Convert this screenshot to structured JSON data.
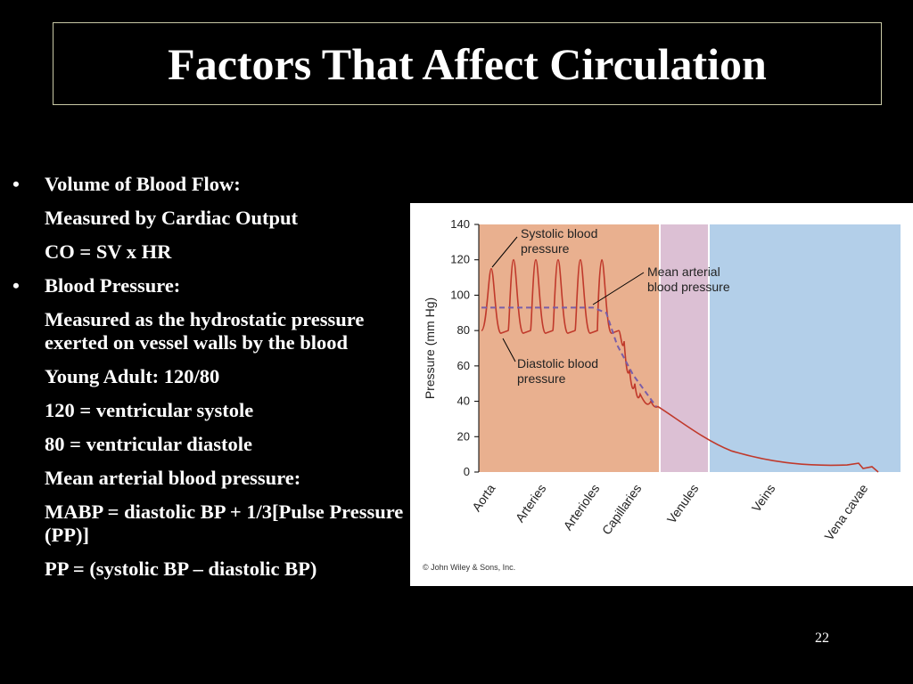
{
  "slide": {
    "title": "Factors That Affect Circulation",
    "number": "22"
  },
  "content": {
    "lines": [
      {
        "text": "Volume of Blood Flow:",
        "bullet": true
      },
      {
        "text": "Measured by Cardiac Output",
        "bullet": false
      },
      {
        "text": "CO = SV x HR",
        "bullet": false
      },
      {
        "text": "Blood Pressure:",
        "bullet": true
      },
      {
        "text": "Measured as the hydrostatic pressure exerted on vessel walls by the blood",
        "bullet": false
      },
      {
        "text": "Young Adult:  120/80",
        "bullet": false
      },
      {
        "text": "120 = ventricular systole",
        "bullet": false
      },
      {
        "text": "80   = ventricular diastole",
        "bullet": false
      },
      {
        "text": "Mean arterial blood pressure:",
        "bullet": false
      },
      {
        "text": "MABP = diastolic BP + 1/3[Pulse Pressure (PP)]",
        "bullet": false
      },
      {
        "text": "PP = (systolic BP – diastolic BP)",
        "bullet": false
      }
    ]
  },
  "chart_data": {
    "type": "line",
    "ylabel": "Pressure (mm Hg)",
    "ylim": [
      0,
      140
    ],
    "yticks": [
      0,
      20,
      40,
      60,
      80,
      100,
      120,
      140
    ],
    "categories": [
      "Aorta",
      "Arteries",
      "Arterioles",
      "Capillaries",
      "Venules",
      "Veins",
      "Vena cavae"
    ],
    "regions": [
      {
        "name": "arterial",
        "color": "#e9b08f"
      },
      {
        "name": "capillary",
        "color": "#dcc0d4"
      },
      {
        "name": "venous",
        "color": "#b3cfe9"
      }
    ],
    "series": [
      {
        "name": "Mean arterial blood pressure",
        "color": "#7a5ea8",
        "style": "dashed",
        "x": [
          0,
          1,
          2,
          2.5,
          3,
          3.5,
          4
        ],
        "values": [
          93,
          93,
          93,
          90,
          72,
          55,
          37
        ]
      },
      {
        "name": "Systolic/diastolic pressure",
        "color": "#c0392b",
        "style": "solid",
        "peak_x": [
          0.25,
          0.75,
          1.25,
          1.75,
          2.25,
          2.75,
          3.25
        ],
        "systolic": [
          115,
          120,
          120,
          120,
          120,
          120,
          120
        ],
        "diastolic": [
          80,
          80,
          80,
          80,
          80,
          80,
          80
        ]
      }
    ],
    "annotations": [
      "Systolic blood pressure",
      "Mean arterial blood pressure",
      "Diastolic blood pressure"
    ],
    "credit": "© John Wiley & Sons, Inc."
  }
}
